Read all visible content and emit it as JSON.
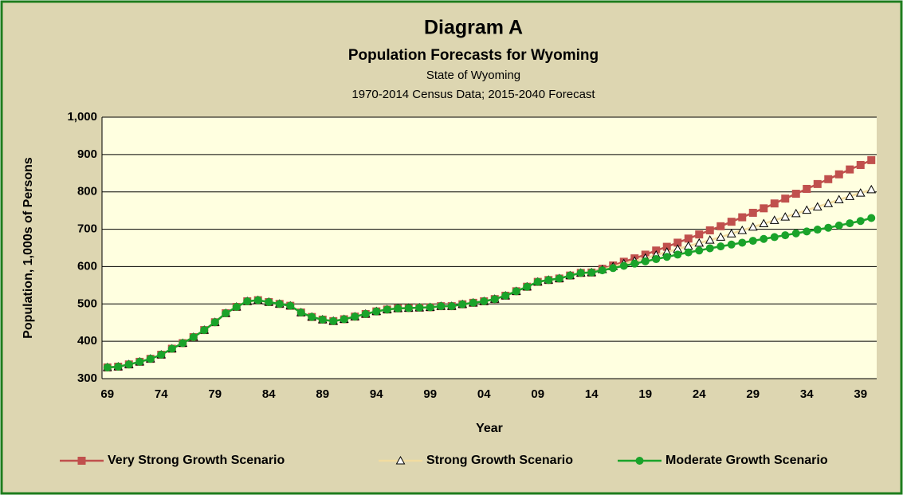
{
  "chart_data": {
    "type": "line",
    "title": "Diagram A",
    "subtitle": "Population Forecasts for Wyoming",
    "notes": [
      "State of Wyoming",
      "1970-2014 Census Data; 2015-2040 Forecast"
    ],
    "x_label": "Year",
    "y_label": "Population, 1,000s of Persons",
    "categories": [
      "69",
      null,
      null,
      null,
      null,
      "74",
      null,
      null,
      null,
      null,
      "79",
      null,
      null,
      null,
      null,
      "84",
      null,
      null,
      null,
      null,
      "89",
      null,
      null,
      null,
      null,
      "94",
      null,
      null,
      null,
      null,
      "99",
      null,
      null,
      null,
      null,
      "04",
      null,
      null,
      null,
      null,
      "09",
      null,
      null,
      null,
      null,
      "14",
      null,
      null,
      null,
      null,
      "19",
      null,
      null,
      null,
      null,
      "24",
      null,
      null,
      null,
      null,
      "29",
      null,
      null,
      null,
      null,
      "34",
      null,
      null,
      null,
      null,
      "39",
      null
    ],
    "ylim": [
      300,
      1000
    ],
    "yticks": [
      300,
      400,
      500,
      600,
      700,
      800,
      900,
      {
        "value": 1000,
        "label": "1,000"
      }
    ],
    "grid": true,
    "legend": "bottom",
    "series": [
      {
        "name": "Very Strong Growth Scenario",
        "color": "#c0504d",
        "marker": "square",
        "values": [
          330,
          332,
          338,
          345,
          353,
          364,
          380,
          395,
          411,
          430,
          451,
          475,
          492,
          507,
          510,
          505,
          500,
          495,
          477,
          465,
          458,
          454,
          459,
          466,
          473,
          480,
          485,
          488,
          489,
          490,
          491,
          494,
          494,
          499,
          503,
          507,
          513,
          522,
          534,
          546,
          559,
          564,
          568,
          576,
          583,
          584,
          594,
          603,
          613,
          622,
          632,
          643,
          653,
          664,
          675,
          686,
          697,
          708,
          720,
          732,
          744,
          756,
          769,
          782,
          795,
          808,
          821,
          834,
          847,
          860,
          872,
          885
        ]
      },
      {
        "name": "Strong Growth Scenario",
        "color": "#f2dca0",
        "marker": "triangle",
        "values": [
          330,
          332,
          338,
          345,
          353,
          364,
          380,
          395,
          411,
          430,
          451,
          475,
          492,
          507,
          510,
          505,
          500,
          495,
          477,
          465,
          458,
          454,
          459,
          466,
          473,
          480,
          485,
          488,
          489,
          490,
          491,
          494,
          494,
          499,
          503,
          507,
          513,
          522,
          534,
          546,
          559,
          564,
          568,
          576,
          583,
          584,
          592,
          600,
          608,
          615,
          623,
          631,
          639,
          647,
          655,
          663,
          671,
          679,
          688,
          697,
          706,
          715,
          724,
          733,
          742,
          751,
          760,
          769,
          779,
          788,
          797,
          806
        ]
      },
      {
        "name": "Moderate Growth Scenario",
        "color": "#1aa32a",
        "marker": "circle",
        "values": [
          330,
          332,
          338,
          345,
          353,
          364,
          380,
          395,
          411,
          430,
          451,
          475,
          492,
          507,
          510,
          505,
          500,
          495,
          477,
          465,
          458,
          454,
          459,
          466,
          473,
          480,
          485,
          488,
          489,
          490,
          491,
          494,
          494,
          499,
          503,
          507,
          513,
          522,
          534,
          546,
          559,
          564,
          568,
          576,
          583,
          584,
          590,
          596,
          602,
          608,
          614,
          620,
          626,
          632,
          638,
          643,
          649,
          654,
          659,
          664,
          669,
          674,
          679,
          684,
          689,
          694,
          699,
          704,
          710,
          716,
          722,
          730
        ]
      }
    ]
  }
}
